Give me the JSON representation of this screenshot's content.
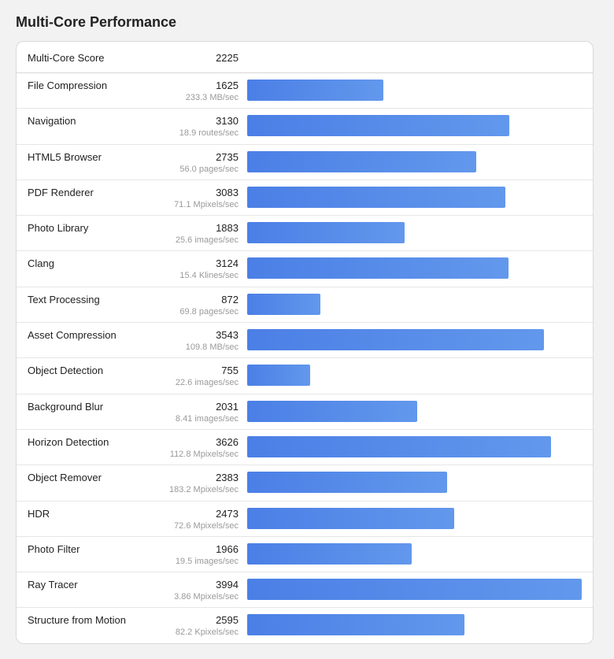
{
  "page": {
    "title": "Multi-Core Performance"
  },
  "summary": {
    "label": "Multi-Core Score",
    "value": "2225"
  },
  "colors": {
    "bar_start": "#4b7fe6",
    "bar_end": "#6298ec"
  },
  "chart_data": {
    "type": "bar",
    "orientation": "horizontal",
    "categories": [
      "File Compression",
      "Navigation",
      "HTML5 Browser",
      "PDF Renderer",
      "Photo Library",
      "Clang",
      "Text Processing",
      "Asset Compression",
      "Object Detection",
      "Background Blur",
      "Horizon Detection",
      "Object Remover",
      "HDR",
      "Photo Filter",
      "Ray Tracer",
      "Structure from Motion"
    ],
    "values": [
      1625,
      3130,
      2735,
      3083,
      1883,
      3124,
      872,
      3543,
      755,
      2031,
      3626,
      2383,
      2473,
      1966,
      3994,
      2595
    ],
    "rates": [
      "233.3 MB/sec",
      "18.9 routes/sec",
      "56.0 pages/sec",
      "71.1 Mpixels/sec",
      "25.6 images/sec",
      "15.4 Klines/sec",
      "69.8 pages/sec",
      "109.8 MB/sec",
      "22.6 images/sec",
      "8.41 images/sec",
      "112.8 Mpixels/sec",
      "183.2 Mpixels/sec",
      "72.6 Mpixels/sec",
      "19.5 images/sec",
      "3.86 Mpixels/sec",
      "82.2 Kpixels/sec"
    ],
    "xlim": [
      0,
      3994
    ],
    "title": "",
    "xlabel": "",
    "ylabel": "",
    "grid": false,
    "legend": "none"
  }
}
